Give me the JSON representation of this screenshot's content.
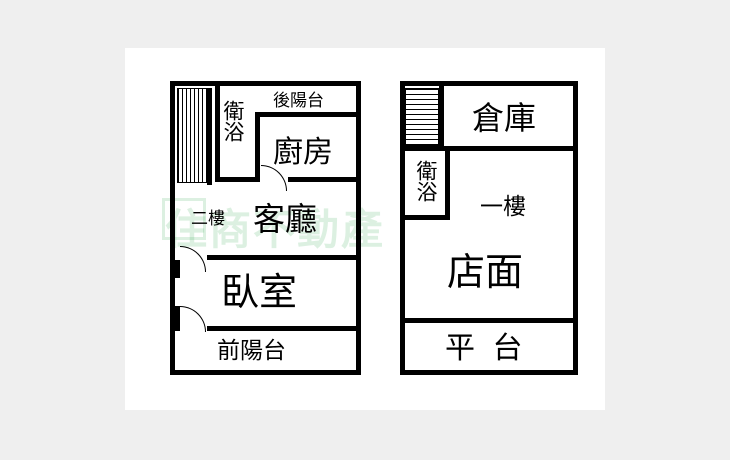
{
  "floorplan_left": {
    "rear_balcony": "後陽台",
    "bathroom": "衛浴",
    "kitchen": "廚房",
    "floor_label": "二樓",
    "living_room": "客廳",
    "bedroom": "臥室",
    "front_balcony": "前陽台"
  },
  "floorplan_right": {
    "storage": "倉庫",
    "bathroom": "衛浴",
    "floor_label": "一樓",
    "shop_front": "店面",
    "platform": "平 台"
  },
  "watermark": {
    "text": "住商不動產"
  },
  "colors": {
    "background": "#efefef",
    "paper": "#ffffff",
    "walls": "#000000",
    "watermark": "rgba(60,170,90,0.18)"
  }
}
